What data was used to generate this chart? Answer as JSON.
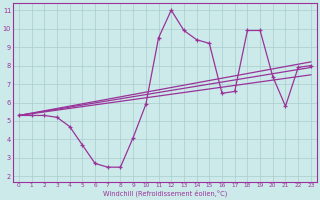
{
  "xlabel": "Windchill (Refroidissement éolien,°C)",
  "background_color": "#cceaea",
  "line_color": "#993399",
  "x_min": 0,
  "x_max": 23,
  "y_min": 2,
  "y_max": 11,
  "grid_color": "#aacccc",
  "series1_x": [
    0,
    1,
    2,
    3,
    4,
    5,
    6,
    7,
    8,
    9,
    10,
    11,
    12,
    13,
    14,
    15,
    16,
    17,
    18,
    19,
    20,
    21,
    22,
    23
  ],
  "series1_y": [
    5.3,
    5.3,
    5.3,
    5.2,
    4.7,
    3.7,
    2.7,
    2.5,
    2.5,
    4.1,
    5.9,
    9.5,
    11.0,
    9.9,
    9.4,
    9.2,
    6.5,
    6.6,
    9.9,
    9.9,
    7.4,
    5.8,
    7.9,
    8.0
  ],
  "trend1_x": [
    0,
    23
  ],
  "trend1_y": [
    5.3,
    8.2
  ],
  "trend2_x": [
    0,
    23
  ],
  "trend2_y": [
    5.3,
    7.5
  ],
  "trend3_x": [
    0,
    23
  ],
  "trend3_y": [
    5.3,
    7.9
  ]
}
